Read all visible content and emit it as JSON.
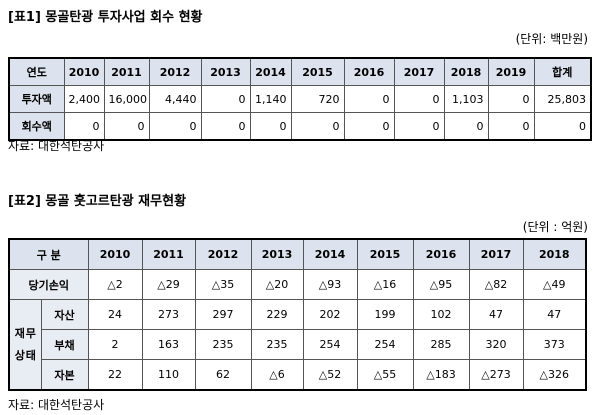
{
  "table1": {
    "title": "[표1] 몽골탄광 투자사업 회수 현황",
    "unit": "(단위: 백만원)",
    "header": [
      "연도",
      "2010",
      "2011",
      "2012",
      "2013",
      "2014",
      "2015",
      "2016",
      "2017",
      "2018",
      "2019",
      "합계"
    ],
    "rows": [
      {
        "label": "투자액",
        "values": [
          "2,400",
          "16,000",
          "4,440",
          "0",
          "1,140",
          "720",
          "0",
          "0",
          "1,103",
          "0",
          "25,803"
        ]
      },
      {
        "label": "회수액",
        "values": [
          "0",
          "0",
          "0",
          "0",
          "0",
          "0",
          "0",
          "0",
          "0",
          "0",
          "0"
        ]
      }
    ],
    "source": "자료: 대한석탄공사"
  },
  "table2": {
    "title": "[표2] 몽골 훗고르탄광 재무현황",
    "unit": "(단위 : 억원)",
    "header": [
      "구 분",
      "2010",
      "2011",
      "2012",
      "2013",
      "2014",
      "2015",
      "2016",
      "2017",
      "2018"
    ],
    "rows": [
      {
        "label": "당기손익",
        "values": [
          "△2",
          "△29",
          "△35",
          "△20",
          "△93",
          "△16",
          "△95",
          "△82",
          "△49"
        ]
      }
    ],
    "group": {
      "label": "재무상태",
      "rows": [
        {
          "label": "자산",
          "values": [
            "24",
            "273",
            "297",
            "229",
            "202",
            "199",
            "102",
            "47",
            "47"
          ]
        },
        {
          "label": "부채",
          "values": [
            "2",
            "163",
            "235",
            "235",
            "254",
            "254",
            "285",
            "320",
            "373"
          ]
        },
        {
          "label": "자본",
          "values": [
            "22",
            "110",
            "62",
            "△6",
            "△52",
            "△55",
            "△183",
            "△273",
            "△326"
          ]
        }
      ]
    },
    "source": "자료: 대한석탄공사"
  }
}
